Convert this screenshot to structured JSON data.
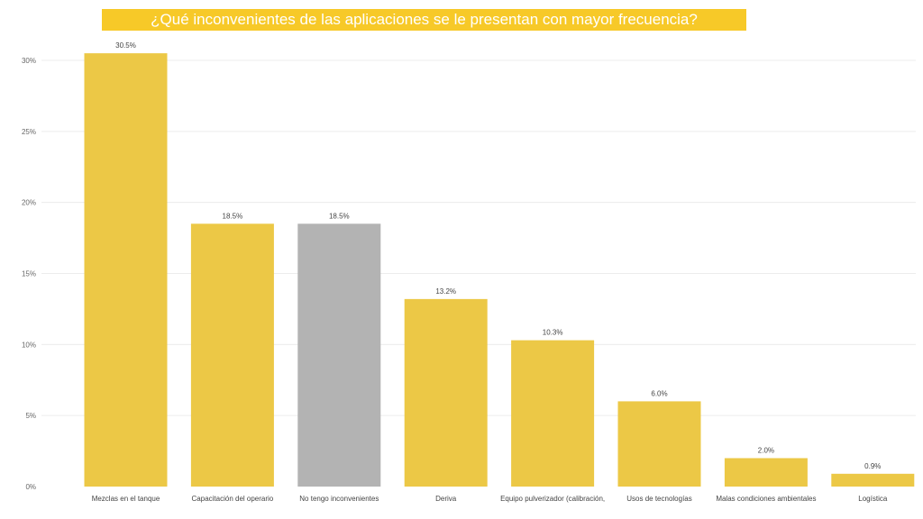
{
  "chart_data": {
    "type": "bar",
    "title": "¿Qué inconvenientes de las aplicaciones se le presentan con mayor frecuencia?",
    "categories": [
      "Mezclas en el tanque",
      "Capacitación del operario",
      "No tengo inconvenientes",
      "Deriva",
      "Equipo pulverizador (calibración,",
      "Usos de tecnologías",
      "Malas condiciones ambientales",
      "Logística"
    ],
    "values": [
      30.5,
      18.5,
      18.5,
      13.2,
      10.3,
      6.0,
      2.0,
      0.9
    ],
    "data_labels": [
      "30.5%",
      "18.5%",
      "18.5%",
      "13.2%",
      "10.3%",
      "6.0%",
      "2.0%",
      "0.9%"
    ],
    "y_ticks": [
      0,
      5,
      10,
      15,
      20,
      25,
      30
    ],
    "y_tick_labels": [
      "0%",
      "5%",
      "10%",
      "15%",
      "20%",
      "25%",
      "30%"
    ],
    "ylim": [
      0,
      30
    ],
    "grid": true,
    "legend": "none",
    "colors": {
      "bar": "#ecc846",
      "highlight": "#b3b3b3",
      "title_bg": "#f7c928",
      "title_text": "#ffffff"
    },
    "highlight_index": 2
  }
}
